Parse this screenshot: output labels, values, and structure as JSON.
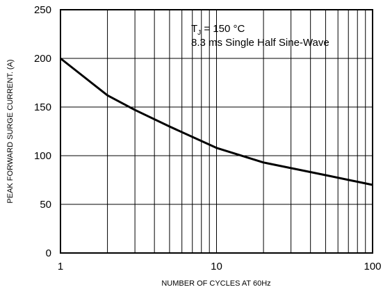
{
  "chart_data": {
    "type": "line",
    "x_scale": "log",
    "xlim": [
      1,
      100
    ],
    "ylim": [
      0,
      250
    ],
    "grid": true,
    "x_ticks": [
      1,
      10,
      100
    ],
    "x_tick_labels": [
      "1",
      "10",
      "100"
    ],
    "y_ticks": [
      0,
      50,
      100,
      150,
      200,
      250
    ],
    "y_tick_labels": [
      "0",
      "50",
      "100",
      "150",
      "200",
      "250"
    ],
    "xlabel": "NUMBER OF CYCLES AT 60Hz",
    "ylabel": "PEAK FORWARD SURGE CURRENT. (A)",
    "annotation": {
      "line1_prefix": "T",
      "line1_sub": "J",
      "line1_rest": " = 150 °C",
      "line2": "8.3 ms Single Half Sine-Wave"
    },
    "series": [
      {
        "x": [
          1,
          2,
          3,
          5,
          10,
          20,
          50,
          100
        ],
        "y": [
          200,
          162,
          147,
          130,
          108,
          93,
          80,
          70
        ]
      }
    ],
    "line_color": "#000000",
    "grid_color": "#000000"
  }
}
